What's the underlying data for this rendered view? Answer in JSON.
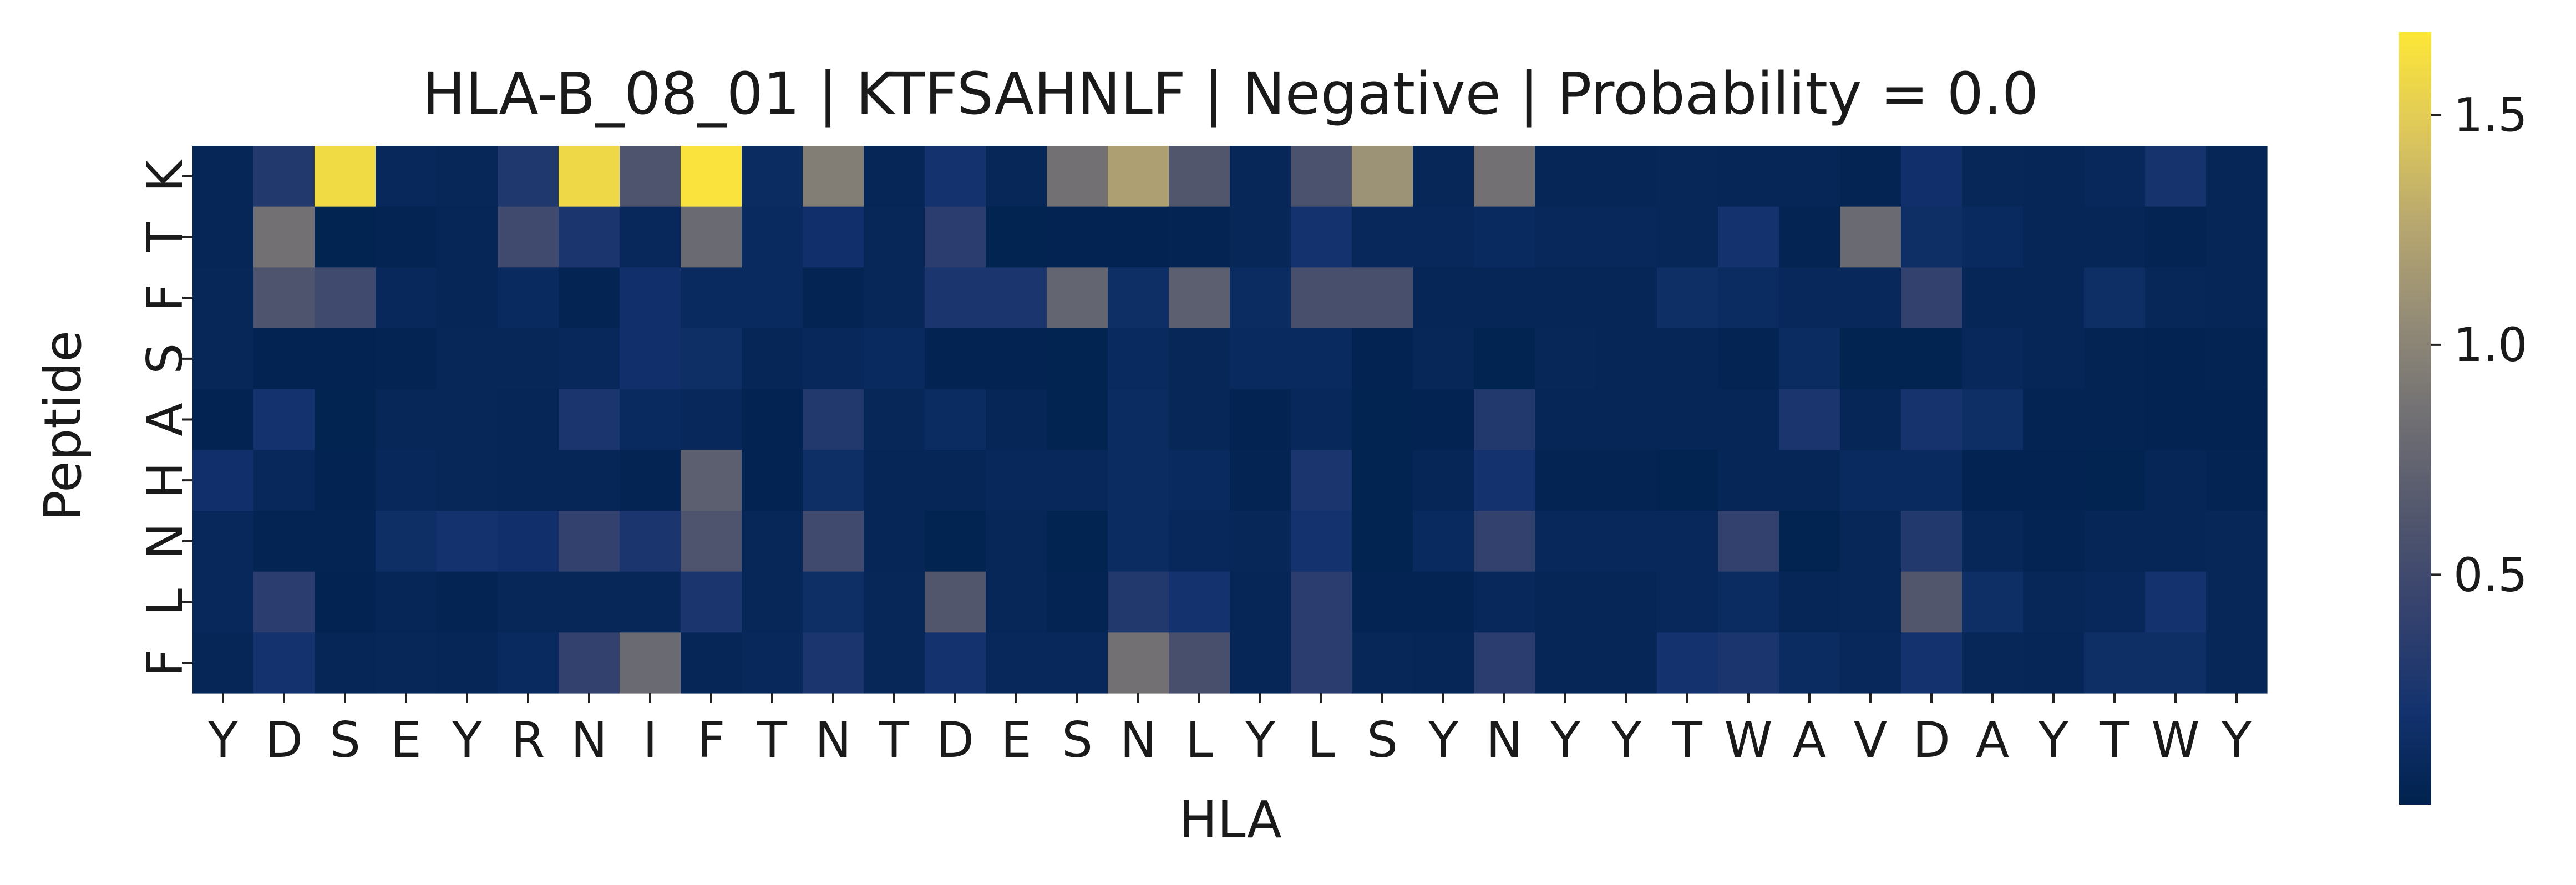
{
  "chart_data": {
    "type": "heatmap",
    "title": "HLA-B_08_01 | KTFSAHNLF | Negative | Probability = 0.0",
    "xlabel": "HLA",
    "ylabel": "Peptide",
    "x_categories": [
      "Y",
      "D",
      "S",
      "E",
      "Y",
      "R",
      "N",
      "I",
      "F",
      "T",
      "N",
      "T",
      "D",
      "E",
      "S",
      "N",
      "L",
      "Y",
      "L",
      "S",
      "Y",
      "N",
      "Y",
      "Y",
      "T",
      "W",
      "A",
      "V",
      "D",
      "A",
      "Y",
      "T",
      "W",
      "Y"
    ],
    "y_categories": [
      "K",
      "T",
      "F",
      "S",
      "A",
      "H",
      "N",
      "L",
      "F"
    ],
    "values": [
      [
        0.05,
        0.3,
        1.6,
        0.08,
        0.06,
        0.28,
        1.58,
        0.6,
        1.65,
        0.12,
        0.95,
        0.05,
        0.2,
        0.06,
        0.85,
        1.2,
        0.62,
        0.06,
        0.58,
        1.1,
        0.06,
        0.85,
        0.05,
        0.05,
        0.06,
        0.05,
        0.05,
        0.04,
        0.18,
        0.06,
        0.05,
        0.08,
        0.22,
        0.05
      ],
      [
        0.05,
        0.85,
        0.02,
        0.04,
        0.05,
        0.5,
        0.25,
        0.08,
        0.8,
        0.1,
        0.18,
        0.06,
        0.35,
        0.02,
        0.03,
        0.03,
        0.04,
        0.06,
        0.2,
        0.08,
        0.08,
        0.1,
        0.08,
        0.08,
        0.06,
        0.2,
        0.04,
        0.8,
        0.15,
        0.1,
        0.05,
        0.05,
        0.04,
        0.05
      ],
      [
        0.06,
        0.6,
        0.5,
        0.08,
        0.05,
        0.1,
        0.04,
        0.18,
        0.1,
        0.1,
        0.04,
        0.06,
        0.25,
        0.25,
        0.75,
        0.15,
        0.7,
        0.12,
        0.55,
        0.55,
        0.05,
        0.05,
        0.05,
        0.05,
        0.15,
        0.12,
        0.08,
        0.08,
        0.4,
        0.05,
        0.05,
        0.15,
        0.06,
        0.05
      ],
      [
        0.06,
        0.03,
        0.03,
        0.04,
        0.06,
        0.06,
        0.08,
        0.18,
        0.15,
        0.05,
        0.08,
        0.1,
        0.03,
        0.03,
        0.02,
        0.1,
        0.06,
        0.1,
        0.1,
        0.03,
        0.06,
        0.02,
        0.06,
        0.05,
        0.05,
        0.04,
        0.12,
        0.02,
        0.02,
        0.08,
        0.05,
        0.04,
        0.03,
        0.04
      ],
      [
        0.03,
        0.2,
        0.02,
        0.06,
        0.06,
        0.05,
        0.25,
        0.1,
        0.08,
        0.03,
        0.3,
        0.06,
        0.12,
        0.05,
        0.02,
        0.12,
        0.06,
        0.03,
        0.08,
        0.02,
        0.03,
        0.3,
        0.05,
        0.05,
        0.05,
        0.05,
        0.25,
        0.05,
        0.22,
        0.15,
        0.04,
        0.04,
        0.03,
        0.03
      ],
      [
        0.18,
        0.08,
        0.03,
        0.08,
        0.06,
        0.05,
        0.05,
        0.04,
        0.7,
        0.03,
        0.15,
        0.05,
        0.05,
        0.08,
        0.08,
        0.12,
        0.1,
        0.04,
        0.25,
        0.02,
        0.05,
        0.2,
        0.04,
        0.04,
        0.02,
        0.05,
        0.05,
        0.1,
        0.1,
        0.03,
        0.03,
        0.02,
        0.05,
        0.04
      ],
      [
        0.08,
        0.04,
        0.04,
        0.15,
        0.2,
        0.18,
        0.4,
        0.25,
        0.6,
        0.06,
        0.5,
        0.05,
        0.02,
        0.06,
        0.02,
        0.12,
        0.08,
        0.06,
        0.2,
        0.02,
        0.1,
        0.4,
        0.08,
        0.08,
        0.08,
        0.4,
        0.02,
        0.06,
        0.3,
        0.06,
        0.04,
        0.05,
        0.05,
        0.06
      ],
      [
        0.08,
        0.35,
        0.03,
        0.05,
        0.04,
        0.06,
        0.06,
        0.06,
        0.25,
        0.06,
        0.15,
        0.06,
        0.62,
        0.06,
        0.04,
        0.3,
        0.2,
        0.05,
        0.35,
        0.04,
        0.04,
        0.08,
        0.05,
        0.05,
        0.08,
        0.12,
        0.05,
        0.06,
        0.62,
        0.15,
        0.06,
        0.08,
        0.2,
        0.06
      ],
      [
        0.05,
        0.2,
        0.05,
        0.06,
        0.05,
        0.1,
        0.4,
        0.8,
        0.05,
        0.08,
        0.25,
        0.06,
        0.2,
        0.08,
        0.08,
        0.85,
        0.55,
        0.05,
        0.35,
        0.06,
        0.05,
        0.35,
        0.05,
        0.05,
        0.2,
        0.25,
        0.12,
        0.08,
        0.2,
        0.06,
        0.05,
        0.15,
        0.15,
        0.06
      ]
    ],
    "colormap": "cividis",
    "vmin": 0.0,
    "vmax": 1.68,
    "colorbar_ticks": [
      0.5,
      1.0,
      1.5
    ],
    "colorbar_tick_labels": [
      "0.5",
      "1.0",
      "1.5"
    ],
    "grid": false,
    "legend": "colorbar-right"
  }
}
